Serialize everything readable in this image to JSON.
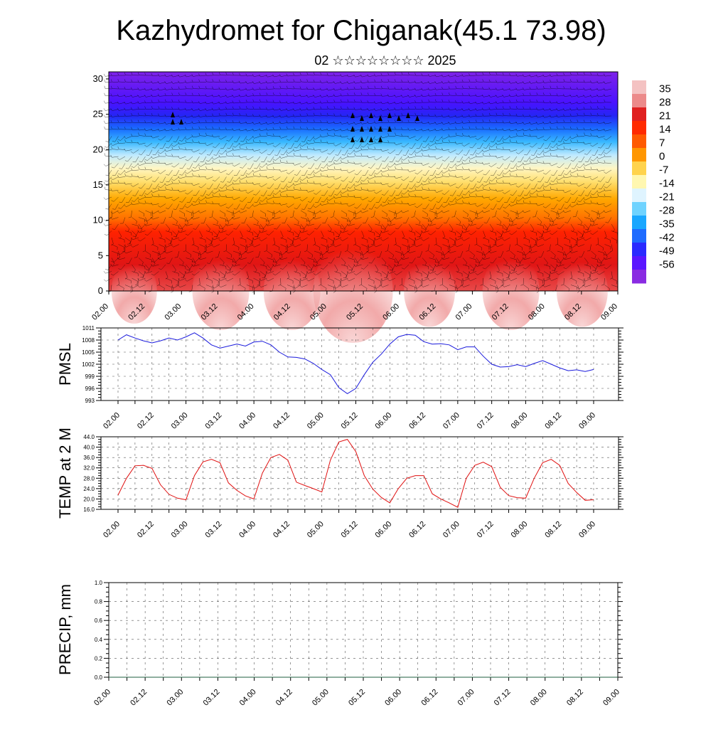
{
  "header": {
    "title": "Kazhydromet for Chiganak(45.1 73.98)",
    "subtitle": "02 ☆☆☆☆☆☆☆☆ 2025"
  },
  "colors": {
    "pmsl_line": "#1a1adc",
    "temp_line": "#e01010",
    "precip_line": "#1f5f3f",
    "wind_barb": "#000000"
  },
  "chart_data": [
    {
      "type": "heatmap",
      "id": "cross-section",
      "description_overlay": "wind barbs",
      "ylim": [
        0,
        31
      ],
      "yticks": [
        "0",
        "5",
        "10",
        "15",
        "20",
        "25",
        "30"
      ],
      "xticks": [
        "02.00",
        "02.12",
        "03.00",
        "03.12",
        "04.00",
        "04.12",
        "05.00",
        "05.12",
        "06.00",
        "06.12",
        "07.00",
        "07.12",
        "08.00",
        "08.12",
        "09.00"
      ],
      "colorbar": {
        "labels": [
          "35",
          "28",
          "21",
          "14",
          "7",
          "0",
          "-7",
          "-14",
          "-21",
          "-28",
          "-35",
          "-42",
          "-49",
          "-56"
        ],
        "colors": [
          "#f4c2c2",
          "#ec8a8a",
          "#e02020",
          "#ff2a00",
          "#ff5a00",
          "#ff9600",
          "#ffd34d",
          "#fff7b0",
          "#dff4ff",
          "#6fd3ff",
          "#1aa7ff",
          "#1e6bff",
          "#2a2aff",
          "#5a16ff",
          "#8a2be2"
        ]
      }
    },
    {
      "type": "line",
      "id": "pmsl",
      "ylabel": "PMSL",
      "ylim": [
        993,
        1011
      ],
      "yticks": [
        "993",
        "996",
        "999",
        "1002",
        "1005",
        "1008",
        "1011"
      ],
      "xticks": [
        "02.00",
        "02.12",
        "03.00",
        "03.12",
        "04.00",
        "04.12",
        "05.00",
        "05.12",
        "06.00",
        "06.12",
        "07.00",
        "07.12",
        "08.00",
        "08.12",
        "09.00"
      ],
      "x": [
        0,
        3,
        6,
        9,
        12,
        15,
        18,
        21,
        24,
        27,
        30,
        33,
        36,
        39,
        42,
        45,
        48,
        51,
        54,
        57,
        60,
        63,
        66,
        69,
        72,
        75,
        78,
        81,
        84,
        87,
        90,
        93,
        96,
        99,
        102,
        105,
        108,
        111,
        114,
        117,
        120,
        123,
        126,
        129,
        132,
        135,
        138,
        141,
        144,
        147,
        150,
        153,
        156,
        159,
        162,
        165,
        168
      ],
      "series": [
        {
          "values": [
            1008.0,
            1009.3,
            1008.5,
            1007.8,
            1007.3,
            1007.8,
            1008.5,
            1008.0,
            1008.8,
            1009.8,
            1008.5,
            1006.8,
            1006.0,
            1006.5,
            1007.0,
            1006.5,
            1007.5,
            1007.7,
            1006.8,
            1005.0,
            1003.8,
            1003.7,
            1003.3,
            1002.2,
            1000.7,
            999.4,
            996.2,
            994.7,
            996.0,
            999.4,
            1002.5,
            1004.5,
            1007.0,
            1008.8,
            1009.4,
            1009.2,
            1007.6,
            1007.0,
            1007.1,
            1006.8,
            1005.6,
            1006.3,
            1006.3,
            1004.0,
            1002.0,
            1001.3,
            1001.4,
            1001.9,
            1001.4,
            1002.2,
            1002.9,
            1002.0,
            1001.1,
            1000.4,
            1000.6,
            1000.2,
            1000.7
          ]
        }
      ]
    },
    {
      "type": "line",
      "id": "temp",
      "ylabel": "TEMP at 2 M",
      "ylim": [
        16,
        44
      ],
      "yticks": [
        "16.0",
        "20.0",
        "24.0",
        "28.0",
        "32.0",
        "36.0",
        "40.0",
        "44.0"
      ],
      "xticks": [
        "02.00",
        "02.12",
        "03.00",
        "03.12",
        "04.00",
        "04.12",
        "05.00",
        "05.12",
        "06.00",
        "06.12",
        "07.00",
        "07.12",
        "08.00",
        "08.12",
        "09.00"
      ],
      "x": [
        0,
        3,
        6,
        9,
        12,
        15,
        18,
        21,
        24,
        27,
        30,
        33,
        36,
        39,
        42,
        45,
        48,
        51,
        54,
        57,
        60,
        63,
        66,
        69,
        72,
        75,
        78,
        81,
        84,
        87,
        90,
        93,
        96,
        99,
        102,
        105,
        108,
        111,
        114,
        117,
        120,
        123,
        126,
        129,
        132,
        135,
        138,
        141,
        144,
        147,
        150,
        153,
        156,
        159,
        162,
        165,
        168
      ],
      "series": [
        {
          "values": [
            21.5,
            28.0,
            32.8,
            33.0,
            31.8,
            25.5,
            21.8,
            20.3,
            19.7,
            29.0,
            34.3,
            35.3,
            34.0,
            26.2,
            23.3,
            21.2,
            20.0,
            30.0,
            36.0,
            37.2,
            35.0,
            26.5,
            25.2,
            24.0,
            22.7,
            35.0,
            42.0,
            43.0,
            38.3,
            29.0,
            23.8,
            20.6,
            18.5,
            24.0,
            28.0,
            29.0,
            29.0,
            22.0,
            20.0,
            18.5,
            16.8,
            28.0,
            33.0,
            34.2,
            32.5,
            24.5,
            21.3,
            20.5,
            20.3,
            28.0,
            34.0,
            35.3,
            33.0,
            26.0,
            22.5,
            19.5,
            19.7
          ]
        }
      ]
    },
    {
      "type": "line",
      "id": "precip",
      "ylabel": "PRECIP, mm",
      "ylim": [
        0,
        1
      ],
      "yticks": [
        "0.0",
        "0.2",
        "0.4",
        "0.6",
        "0.8",
        "1.0"
      ],
      "xticks": [
        "02.00",
        "02.12",
        "03.00",
        "03.12",
        "04.00",
        "04.12",
        "05.00",
        "05.12",
        "06.00",
        "06.12",
        "07.00",
        "07.12",
        "08.00",
        "08.12",
        "09.00"
      ],
      "x": [
        0,
        168
      ],
      "series": [
        {
          "values": [
            0,
            0
          ]
        }
      ]
    }
  ]
}
